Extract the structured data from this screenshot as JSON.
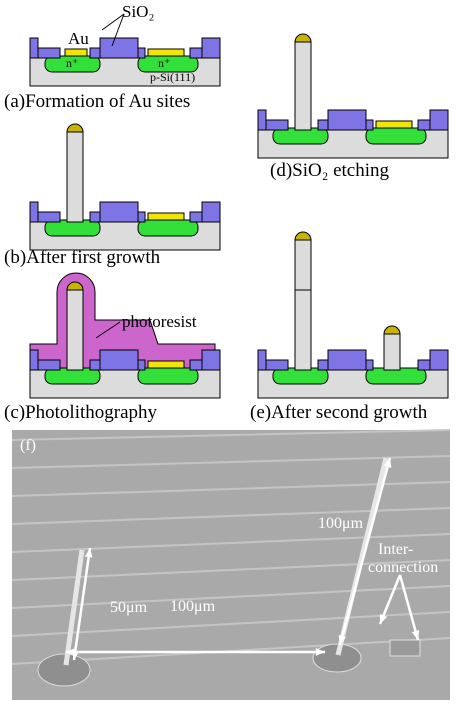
{
  "panels": {
    "a": {
      "caption": "(a)Formation of Au sites",
      "au": "Au",
      "sio2": "SiO₂",
      "n_left": "n⁺",
      "n_right": "n⁺",
      "substrate": "p-Si(111)"
    },
    "b": {
      "caption": "(b)After first growth"
    },
    "c": {
      "caption": "(c)Photolithography",
      "photoresist": "photoresist"
    },
    "d": {
      "caption": "(d)SiO₂ etching"
    },
    "e": {
      "caption": "(e)After second growth"
    }
  },
  "sem": {
    "label": "(f)",
    "right_wire": "100μm",
    "left_wire": "50μm",
    "spacing": "100μm",
    "inter": "Inter-",
    "connection": "connection"
  }
}
